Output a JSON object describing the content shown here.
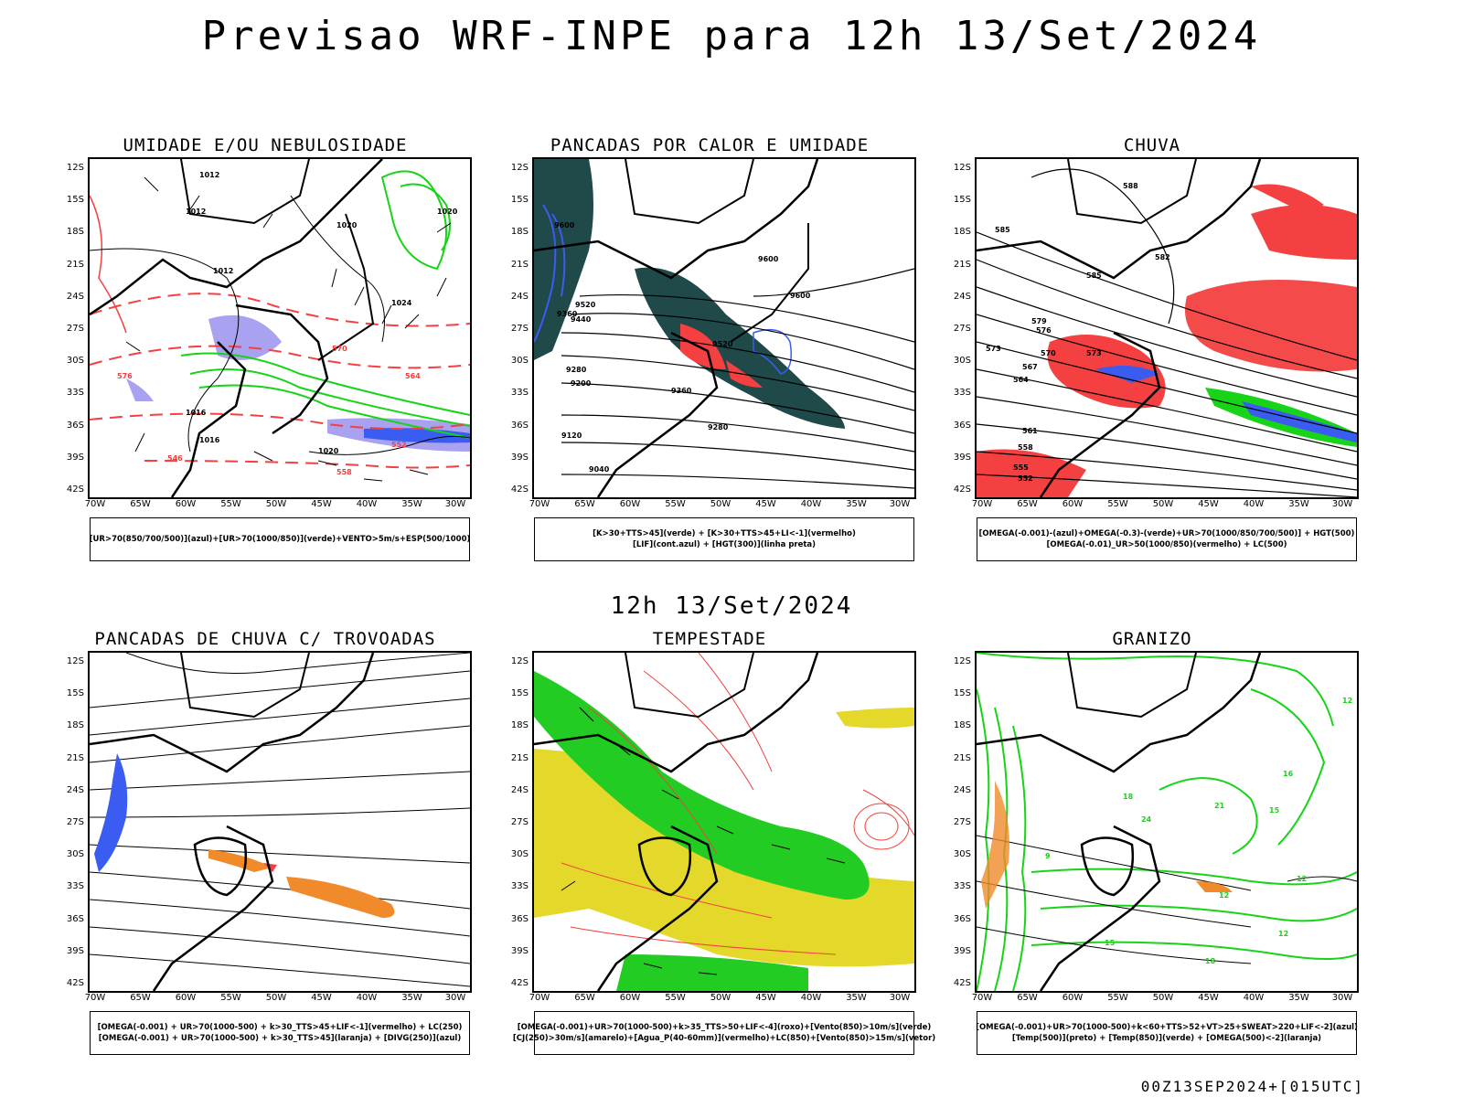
{
  "title": "Previsao WRF-INPE  para 12h 13/Set/2024",
  "mid_date": "12h 13/Set/2024",
  "footer": "00Z13SEP2024+[015UTC]",
  "lat_labels": [
    "12S",
    "15S",
    "18S",
    "21S",
    "24S",
    "27S",
    "30S",
    "33S",
    "36S",
    "39S",
    "42S"
  ],
  "lon_labels": [
    "70W",
    "65W",
    "60W",
    "55W",
    "50W",
    "45W",
    "40W",
    "35W",
    "30W"
  ],
  "colors": {
    "blue": "#3b5cf0",
    "lavender": "#a9a2f0",
    "green": "#18d418",
    "red": "#f44040",
    "darkteal": "#20494a",
    "orange": "#f08a2a",
    "yellow": "#e4d82a",
    "lightgreen": "#22cc22"
  },
  "panels": [
    {
      "id": "umidade",
      "title": "UMIDADE E/OU NEBULOSIDADE",
      "legend": [
        "[UR>70(850/700/500)](azul)+[UR>70(1000/850)](verde)+VENTO>5m/s+ESP(500/1000)"
      ],
      "contour_labels": [
        "1012",
        "1012",
        "1012",
        "1020",
        "1020",
        "1024",
        "1016",
        "1016",
        "1020",
        "570",
        "564",
        "552",
        "546",
        "558",
        "576"
      ]
    },
    {
      "id": "pancadas-calor",
      "title": "PANCADAS POR CALOR E UMIDADE",
      "legend": [
        "[K>30+TTS>45](verde) + [K>30+TTS>45+LI<-1](vermelho)",
        "[LIF](cont.azul) + [HGT(300)](linha preta)"
      ],
      "contour_labels": [
        "9600",
        "9600",
        "9520",
        "9440",
        "9360",
        "9280",
        "9200",
        "9120",
        "9040",
        "9520",
        "9360",
        "9280",
        "9600"
      ]
    },
    {
      "id": "chuva",
      "title": "CHUVA",
      "legend": [
        "[OMEGA(-0.001)-(azul)+OMEGA(-0.3)-(verde)+UR>70(1000/850/700/500)] + HGT(500)",
        "[OMEGA(-0.01)_UR>50(1000/850)(vermelho) + LC(500)"
      ],
      "contour_labels": [
        "588",
        "585",
        "585",
        "579",
        "576",
        "573",
        "570",
        "567",
        "564",
        "561",
        "558",
        "555",
        "552",
        "582",
        "573"
      ]
    },
    {
      "id": "pancadas-trovoadas",
      "title": "PANCADAS DE CHUVA C/ TROVOADAS",
      "legend": [
        "[OMEGA(-0.001) + UR>70(1000-500) + k>30_TTS>45+LIF<-1](vermelho) + LC(250)",
        "[OMEGA(-0.001) + UR>70(1000-500) + k>30_TTS>45](laranja) + [DIVG(250)](azul)"
      ],
      "contour_labels": []
    },
    {
      "id": "tempestade",
      "title": "TEMPESTADE",
      "legend": [
        "[OMEGA(-0.001)+UR>70(1000-500)+k>35_TTS>50+LIF<-4](roxo)+[Vento(850)>10m/s](verde)",
        "[CJ(250)>30m/s](amarelo)+[Agua_P(40-60mm)](vermelho)+LC(850)+[Vento(850)>15m/s](vetor)"
      ],
      "contour_labels": []
    },
    {
      "id": "granizo",
      "title": "GRANIZO",
      "legend": [
        "[OMEGA(-0.001)+UR>70(1000-500)+k<60+TTS>52+VT>25+SWEAT>220+LIF<-2](azul)",
        "[Temp(500)](preto) + [Temp(850)](verde) + [OMEGA(500)<-2](laranja)"
      ],
      "contour_labels": [
        "12",
        "16",
        "15",
        "18",
        "21",
        "24",
        "12",
        "9",
        "12",
        "15",
        "18",
        "12"
      ]
    }
  ]
}
